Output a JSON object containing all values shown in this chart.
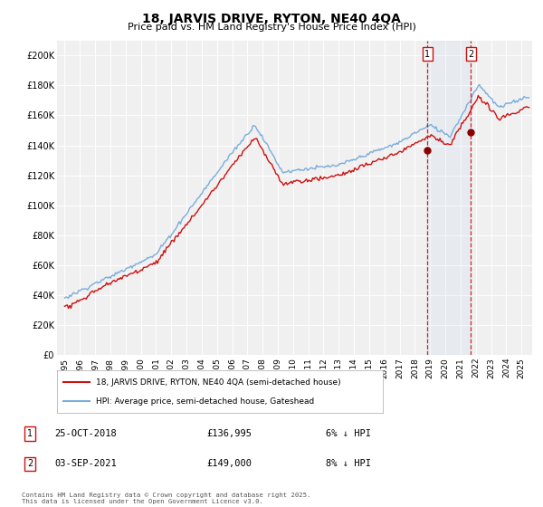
{
  "title": "18, JARVIS DRIVE, RYTON, NE40 4QA",
  "subtitle": "Price paid vs. HM Land Registry's House Price Index (HPI)",
  "ylabel_ticks": [
    "£0",
    "£20K",
    "£40K",
    "£60K",
    "£80K",
    "£100K",
    "£120K",
    "£140K",
    "£160K",
    "£180K",
    "£200K"
  ],
  "ytick_values": [
    0,
    20000,
    40000,
    60000,
    80000,
    100000,
    120000,
    140000,
    160000,
    180000,
    200000
  ],
  "ylim": [
    0,
    210000
  ],
  "xlim_start": 1994.5,
  "xlim_end": 2025.7,
  "xtick_years": [
    1995,
    1996,
    1997,
    1998,
    1999,
    2000,
    2001,
    2002,
    2003,
    2004,
    2005,
    2006,
    2007,
    2008,
    2009,
    2010,
    2011,
    2012,
    2013,
    2014,
    2015,
    2016,
    2017,
    2018,
    2019,
    2020,
    2021,
    2022,
    2023,
    2024,
    2025
  ],
  "hpi_color": "#7aaddc",
  "price_color": "#cc1111",
  "vline1_x": 2018.82,
  "vline2_x": 2021.68,
  "marker1_y": 136995,
  "marker2_y": 149000,
  "legend_label1": "18, JARVIS DRIVE, RYTON, NE40 4QA (semi-detached house)",
  "legend_label2": "HPI: Average price, semi-detached house, Gateshead",
  "annotation1_num": "1",
  "annotation1_date": "25-OCT-2018",
  "annotation1_price": "£136,995",
  "annotation1_hpi": "6% ↓ HPI",
  "annotation2_num": "2",
  "annotation2_date": "03-SEP-2021",
  "annotation2_price": "£149,000",
  "annotation2_hpi": "8% ↓ HPI",
  "footnote": "Contains HM Land Registry data © Crown copyright and database right 2025.\nThis data is licensed under the Open Government Licence v3.0.",
  "background_color": "#ffffff",
  "plot_bg_color": "#f0f0f0",
  "grid_color": "#ffffff"
}
